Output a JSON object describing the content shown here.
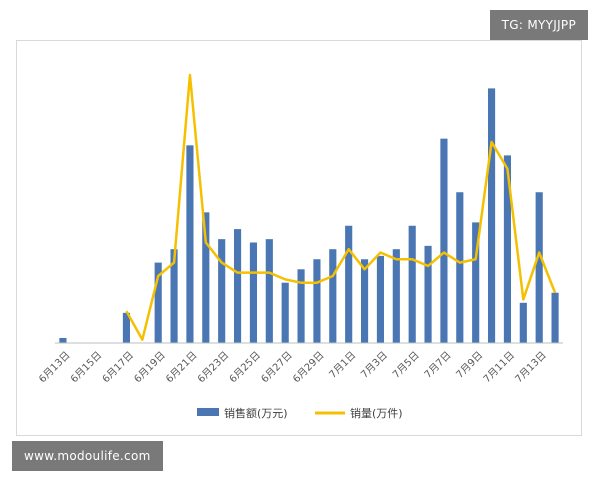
{
  "watermark_top": "TG: MYYJJPP",
  "watermark_bottom": "www.modoulife.com",
  "chart_data": {
    "type": "bar",
    "categories": [
      "6月13日",
      "6月14日",
      "6月15日",
      "6月16日",
      "6月17日",
      "6月18日",
      "6月19日",
      "6月20日",
      "6月21日",
      "6月22日",
      "6月23日",
      "6月24日",
      "6月25日",
      "6月26日",
      "6月27日",
      "6月28日",
      "6月29日",
      "6月30日",
      "7月1日",
      "7月2日",
      "7月3日",
      "7月4日",
      "7月5日",
      "7月6日",
      "7月7日",
      "7月8日",
      "7月9日",
      "7月10日",
      "7月11日",
      "7月12日",
      "7月13日",
      "7月14日"
    ],
    "tick_labels": [
      "6月13日",
      "6月15日",
      "6月17日",
      "6月19日",
      "6月21日",
      "6月23日",
      "6月25日",
      "6月27日",
      "6月29日",
      "7月1日",
      "7月3日",
      "7月5日",
      "7月7日",
      "7月9日",
      "7月11日",
      "7月13日"
    ],
    "series": [
      {
        "name": "销售额(万元)",
        "kind": "bar",
        "color": "#4a76b3",
        "values": [
          1.5,
          0,
          0,
          0,
          9,
          0,
          24,
          28,
          59,
          39,
          31,
          34,
          30,
          31,
          18,
          22,
          25,
          28,
          35,
          25,
          26,
          28,
          35,
          29,
          61,
          45,
          36,
          76,
          56,
          12,
          45,
          15
        ]
      },
      {
        "name": "销量(万件)",
        "kind": "line",
        "color": "#f5c000",
        "values": [
          null,
          null,
          null,
          null,
          9.5,
          1,
          20,
          24,
          80,
          30,
          24,
          21,
          21,
          21,
          19,
          18,
          18,
          20,
          28,
          22,
          27,
          25,
          25,
          23,
          27,
          24,
          25,
          60,
          52,
          13,
          27,
          15
        ]
      }
    ],
    "ylim": [
      0,
      80
    ],
    "grid": false,
    "legend": "bottom"
  }
}
